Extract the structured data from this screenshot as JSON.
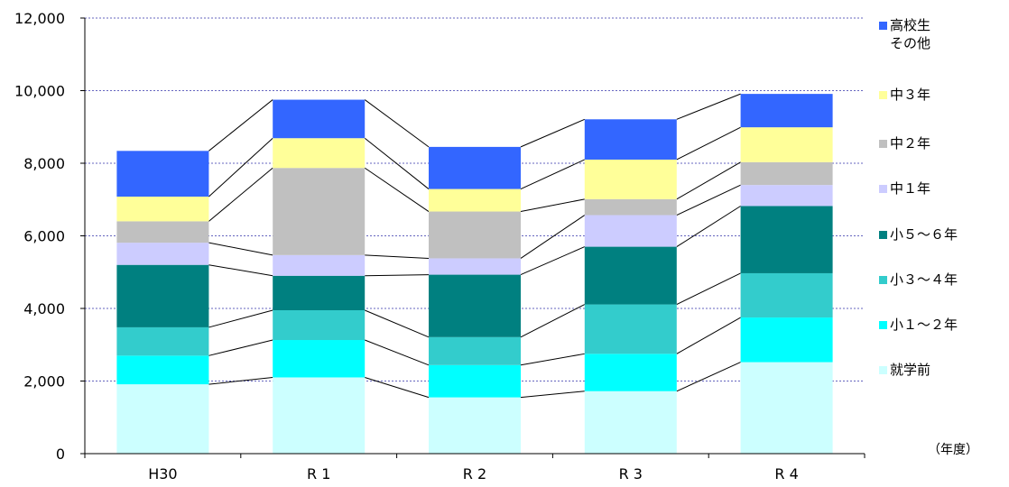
{
  "chart_data": {
    "type": "bar",
    "stacked": true,
    "categories": [
      "H30",
      "R 1",
      "R 2",
      "R 3",
      "R 4"
    ],
    "ylim": [
      0,
      12000
    ],
    "yticks": [
      "0",
      "2,000",
      "4,000",
      "6,000",
      "8,000",
      "10,000",
      "12,000"
    ],
    "ytick_values": [
      0,
      2000,
      4000,
      6000,
      8000,
      10000,
      12000
    ],
    "grid": true,
    "legend_position": "right",
    "series_connector_lines": true,
    "unit_label": "（年度）",
    "series": [
      {
        "name": "就学前",
        "color": "#CCFFFF",
        "values": [
          1910,
          2100,
          1550,
          1720,
          2520
        ]
      },
      {
        "name": "小１～２年",
        "color": "#00FFFF",
        "values": [
          790,
          1030,
          890,
          1030,
          1230
        ]
      },
      {
        "name": "小３～４年",
        "color": "#33CCCC",
        "values": [
          780,
          820,
          770,
          1360,
          1220
        ]
      },
      {
        "name": "小５～６年",
        "color": "#008080",
        "values": [
          1720,
          950,
          1720,
          1590,
          1850
        ]
      },
      {
        "name": "中１年",
        "color": "#CCCCFF",
        "values": [
          610,
          570,
          450,
          870,
          580
        ]
      },
      {
        "name": "中２年",
        "color": "#C0C0C0",
        "values": [
          590,
          2400,
          1290,
          440,
          630
        ]
      },
      {
        "name": "中３年",
        "color": "#FFFF99",
        "values": [
          680,
          820,
          620,
          1090,
          960
        ]
      },
      {
        "name": "高校生\nその他",
        "color": "#3366FF",
        "values": [
          1260,
          1060,
          1160,
          1110,
          920
        ]
      }
    ]
  }
}
